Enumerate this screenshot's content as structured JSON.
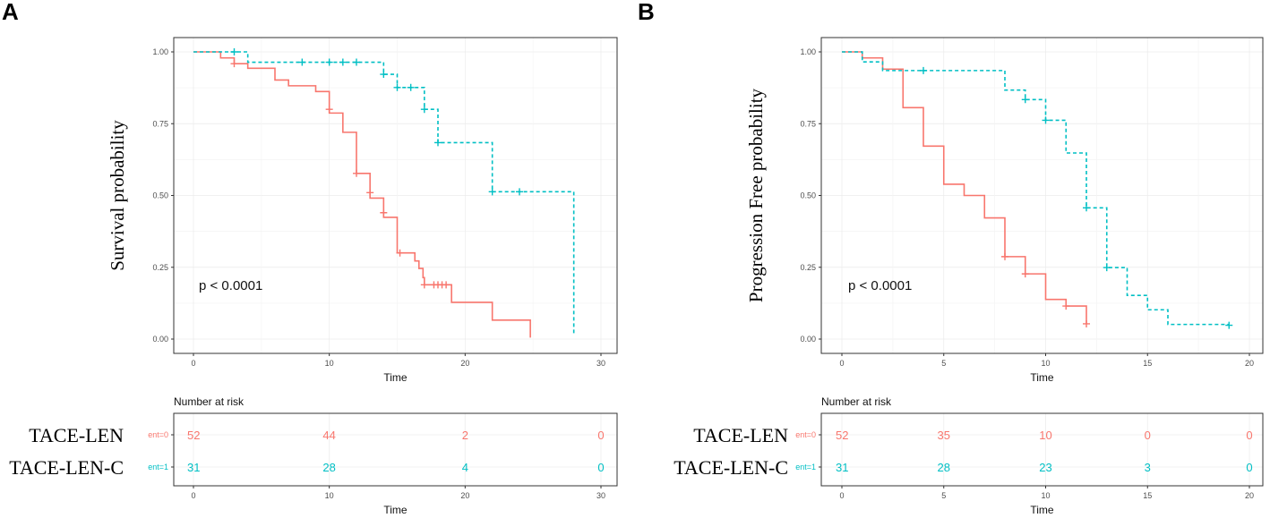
{
  "colors": {
    "group0": "#F8766D",
    "group1": "#00BFC4"
  },
  "chart_data": [
    {
      "type": "line",
      "panel_label": "A",
      "title": "",
      "xlabel": "Time",
      "ylabel": "Survival probability",
      "xlim": [
        0,
        30
      ],
      "ylim": [
        0,
        1
      ],
      "xticks": [
        0,
        10,
        20,
        30
      ],
      "yticks": [
        "0.00",
        "0.25",
        "0.50",
        "0.75",
        "1.00"
      ],
      "grid": true,
      "pvalue": "p < 0.0001",
      "series": [
        {
          "name": "TACE-LEN",
          "strata_label": "ent=0",
          "linestyle": "solid",
          "steps": [
            [
              0,
              1
            ],
            [
              2,
              0.979
            ],
            [
              3,
              0.959
            ],
            [
              4,
              0.943
            ],
            [
              6,
              0.902
            ],
            [
              7,
              0.882
            ],
            [
              9,
              0.862
            ],
            [
              10,
              0.787
            ],
            [
              11,
              0.72
            ],
            [
              12,
              0.577
            ],
            [
              13,
              0.491
            ],
            [
              14,
              0.424
            ],
            [
              15,
              0.3
            ],
            [
              16.3,
              0.272
            ],
            [
              16.6,
              0.246
            ],
            [
              16.9,
              0.214
            ],
            [
              17,
              0.189
            ],
            [
              19,
              0.128
            ],
            [
              22,
              0.066
            ],
            [
              24.8,
              0.066
            ],
            [
              24.8,
              0.005
            ]
          ],
          "censors": [
            [
              3,
              0.959
            ],
            [
              10,
              0.8
            ],
            [
              12,
              0.577
            ],
            [
              13,
              0.51
            ],
            [
              14,
              0.44
            ],
            [
              15.2,
              0.3
            ],
            [
              17,
              0.189
            ],
            [
              17.7,
              0.189
            ],
            [
              18,
              0.189
            ],
            [
              18.3,
              0.189
            ],
            [
              18.6,
              0.189
            ]
          ]
        },
        {
          "name": "TACE-LEN-C",
          "strata_label": "ent=1",
          "linestyle": "dashed",
          "steps": [
            [
              0,
              1
            ],
            [
              4,
              0.964
            ],
            [
              14,
              0.922
            ],
            [
              15,
              0.876
            ],
            [
              17,
              0.8
            ],
            [
              18,
              0.684
            ],
            [
              22,
              0.513
            ],
            [
              28,
              0.513
            ],
            [
              28,
              0.012
            ]
          ],
          "censors": [
            [
              3,
              1
            ],
            [
              8,
              0.964
            ],
            [
              10,
              0.964
            ],
            [
              11,
              0.964
            ],
            [
              12,
              0.964
            ],
            [
              14,
              0.922
            ],
            [
              15,
              0.876
            ],
            [
              16,
              0.876
            ],
            [
              17,
              0.8
            ],
            [
              18,
              0.684
            ],
            [
              22,
              0.513
            ],
            [
              24,
              0.513
            ]
          ]
        }
      ],
      "risk_table": {
        "title": "Number at risk",
        "xlabel": "Time",
        "times": [
          0,
          10,
          20,
          30
        ],
        "rows": [
          {
            "name": "TACE-LEN",
            "values": [
              52,
              44,
              2,
              0
            ]
          },
          {
            "name": "TACE-LEN-C",
            "values": [
              31,
              28,
              4,
              0
            ]
          }
        ]
      }
    },
    {
      "type": "line",
      "panel_label": "B",
      "title": "",
      "xlabel": "Time",
      "ylabel": "Progression Free probability",
      "xlim": [
        0,
        20
      ],
      "ylim": [
        0,
        1
      ],
      "xticks": [
        0,
        5,
        10,
        15,
        20
      ],
      "yticks": [
        "0.00",
        "0.25",
        "0.50",
        "0.75",
        "1.00"
      ],
      "grid": true,
      "pvalue": "p < 0.0001",
      "series": [
        {
          "name": "TACE-LEN",
          "strata_label": "ent=0",
          "linestyle": "solid",
          "steps": [
            [
              0,
              1
            ],
            [
              1,
              0.979
            ],
            [
              2,
              0.94
            ],
            [
              3,
              0.806
            ],
            [
              4,
              0.672
            ],
            [
              5,
              0.539
            ],
            [
              6,
              0.5
            ],
            [
              7,
              0.422
            ],
            [
              8,
              0.287
            ],
            [
              9,
              0.227
            ],
            [
              10,
              0.138
            ],
            [
              11,
              0.115
            ],
            [
              12,
              0.115
            ],
            [
              12,
              0.053
            ]
          ],
          "censors": [
            [
              8,
              0.287
            ],
            [
              9,
              0.227
            ],
            [
              11,
              0.115
            ],
            [
              12,
              0.053
            ]
          ]
        },
        {
          "name": "TACE-LEN-C",
          "strata_label": "ent=1",
          "linestyle": "dashed",
          "steps": [
            [
              0,
              1
            ],
            [
              1,
              0.965
            ],
            [
              2,
              0.935
            ],
            [
              8,
              0.867
            ],
            [
              9,
              0.834
            ],
            [
              10,
              0.762
            ],
            [
              11,
              0.648
            ],
            [
              12,
              0.457
            ],
            [
              13,
              0.249
            ],
            [
              14,
              0.152
            ],
            [
              15,
              0.102
            ],
            [
              16,
              0.051
            ],
            [
              19,
              0.051
            ]
          ],
          "censors": [
            [
              4,
              0.935
            ],
            [
              9,
              0.834
            ],
            [
              10,
              0.762
            ],
            [
              12,
              0.457
            ],
            [
              13,
              0.249
            ],
            [
              19,
              0.048
            ]
          ]
        }
      ],
      "risk_table": {
        "title": "Number at risk",
        "xlabel": "Time",
        "times": [
          0,
          5,
          10,
          15,
          20
        ],
        "rows": [
          {
            "name": "TACE-LEN",
            "values": [
              52,
              35,
              10,
              0,
              0
            ]
          },
          {
            "name": "TACE-LEN-C",
            "values": [
              31,
              28,
              23,
              3,
              0
            ]
          }
        ]
      }
    }
  ]
}
